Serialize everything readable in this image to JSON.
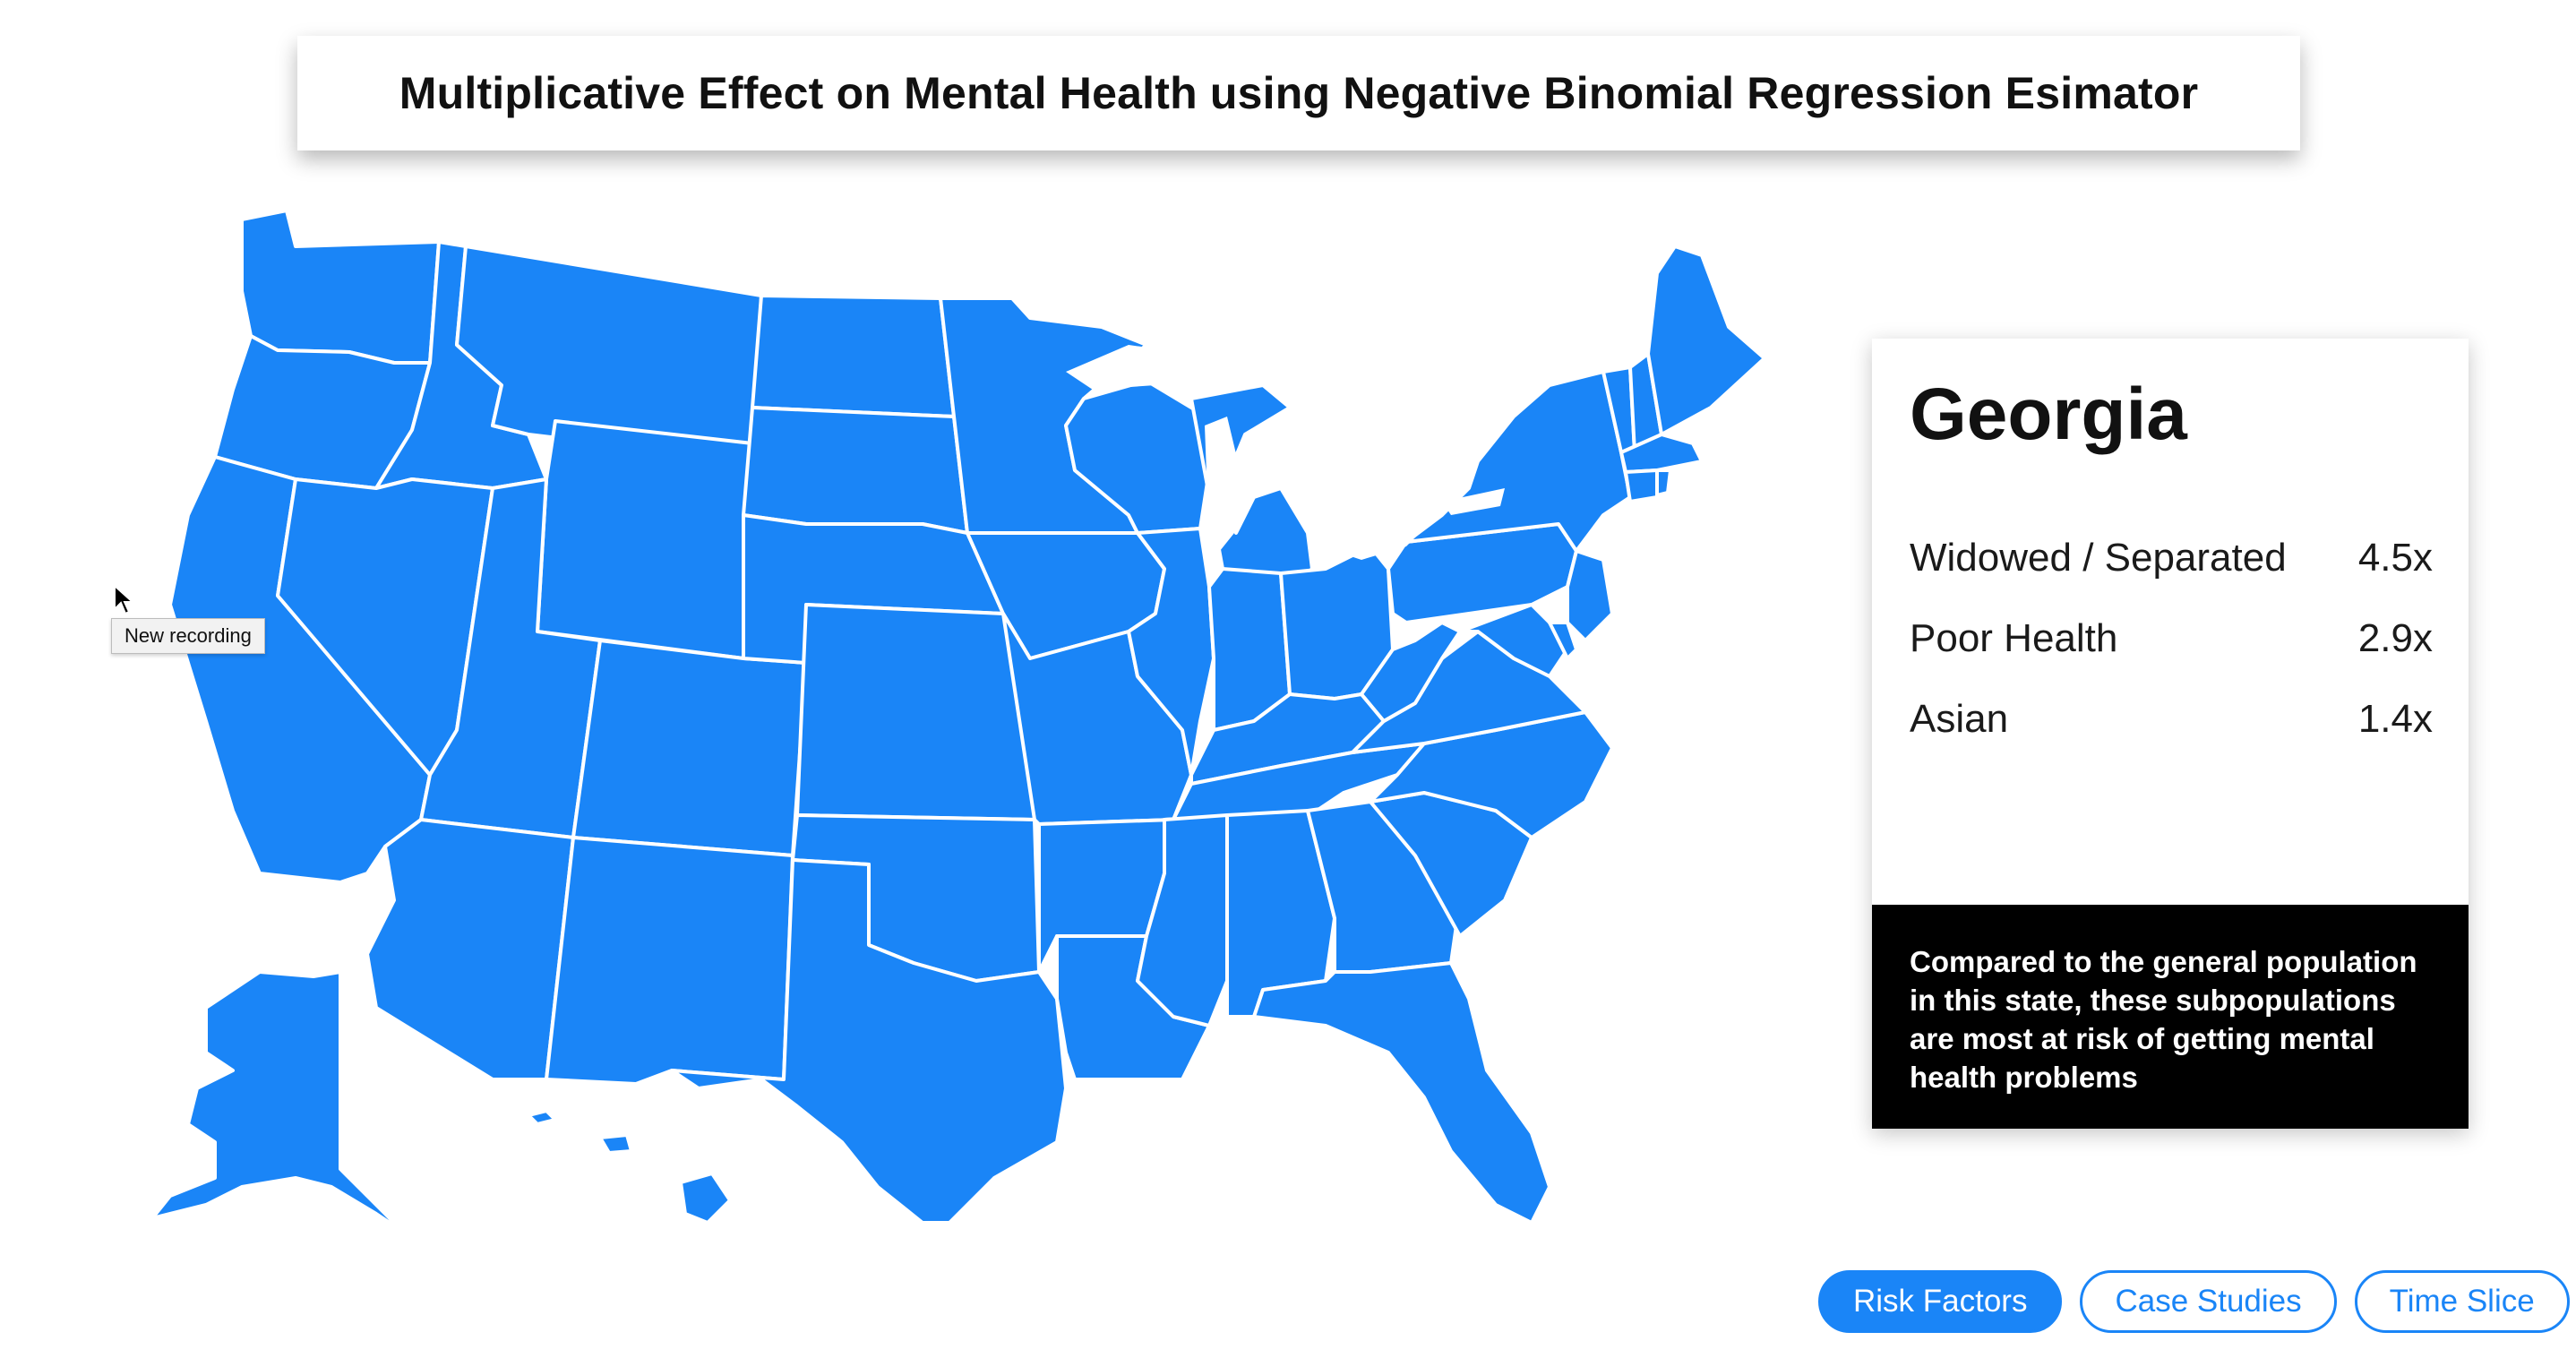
{
  "title": "Multiplicative Effect on Mental Health using Negative Binomial Regression Esimator",
  "tooltip": "New recording",
  "map": {
    "fill_color": "#1a85f7",
    "border_color": "#ffffff"
  },
  "panel": {
    "state": "Georgia",
    "factors": [
      {
        "label": "Widowed / Separated",
        "value": "4.5x"
      },
      {
        "label": "Poor Health",
        "value": "2.9x"
      },
      {
        "label": "Asian",
        "value": "1.4x"
      }
    ],
    "note": "Compared to the general population in this state, these subpopulations are most at risk of getting mental health problems"
  },
  "nav": {
    "risk_factors": "Risk Factors",
    "case_studies": "Case Studies",
    "time_slice": "Time Slice",
    "active": "Risk Factors"
  },
  "colors": {
    "accent": "#1a85f7",
    "note_bg": "#000000"
  }
}
